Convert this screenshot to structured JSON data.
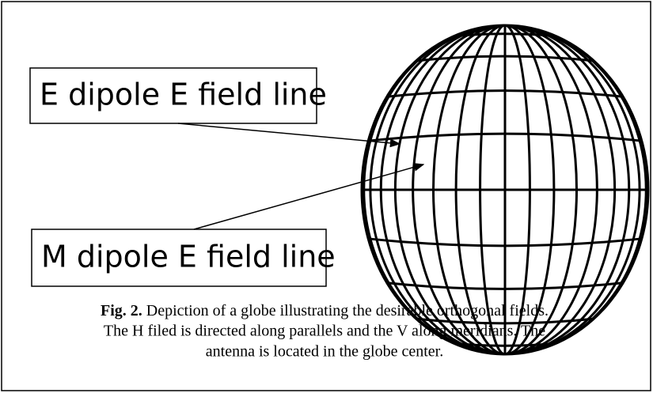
{
  "labels": [
    "E dipole E field line",
    "M dipole E field line"
  ],
  "caption": {
    "label": "Fig. 2.",
    "lines": [
      "Depiction of a globe illustrating the desirable orthogonal fields.",
      "The H filed is directed along parallels and the V along meridians. The",
      "antenna is located in the globe center."
    ]
  }
}
